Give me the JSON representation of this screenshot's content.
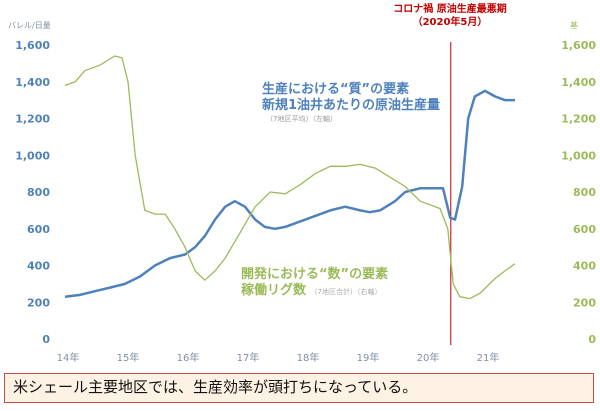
{
  "chart_data": {
    "type": "line",
    "left_axis": {
      "unit": "バレル/日量",
      "ylim": [
        0,
        1600
      ],
      "ticks": [
        "0",
        "200",
        "400",
        "600",
        "800",
        "1,000",
        "1,200",
        "1,400",
        "1,600"
      ],
      "color": "#4f81bd"
    },
    "right_axis": {
      "unit": "基",
      "ylim": [
        0,
        1600
      ],
      "ticks": [
        "0",
        "200",
        "400",
        "600",
        "800",
        "1,000",
        "1,200",
        "1,400",
        "1,600"
      ],
      "color": "#9bbb59"
    },
    "x_ticks": [
      "14年",
      "15年",
      "16年",
      "17年",
      "18年",
      "19年",
      "20年",
      "21年"
    ],
    "grid": false,
    "marker_line": {
      "label_line1": "コロナ禍 原油生産最悪期",
      "label_line2": "（2020年5月）",
      "x": 2020.38,
      "color": "#c00000"
    },
    "series": [
      {
        "name_line1": "生産における“質”の要素",
        "name_line2": "新規1油井あたりの原油生産量",
        "note": "（7地区平均）（左軸）",
        "axis": "left",
        "color": "#4f81bd",
        "x": [
          2013.95,
          2014.2,
          2014.45,
          2014.7,
          2014.95,
          2015.2,
          2015.45,
          2015.7,
          2015.95,
          2016.12,
          2016.28,
          2016.45,
          2016.62,
          2016.78,
          2016.95,
          2017.12,
          2017.28,
          2017.45,
          2017.62,
          2017.87,
          2018.12,
          2018.37,
          2018.62,
          2018.87,
          2019.03,
          2019.2,
          2019.45,
          2019.62,
          2019.87,
          2020.12,
          2020.25,
          2020.37,
          2020.45,
          2020.57,
          2020.67,
          2020.78,
          2020.95,
          2021.12,
          2021.28,
          2021.45
        ],
        "y": [
          230,
          240,
          260,
          280,
          300,
          340,
          400,
          440,
          460,
          500,
          560,
          650,
          720,
          750,
          720,
          650,
          610,
          600,
          610,
          640,
          670,
          700,
          720,
          700,
          690,
          700,
          750,
          800,
          820,
          820,
          820,
          660,
          650,
          830,
          1200,
          1320,
          1350,
          1320,
          1300,
          1300
        ]
      },
      {
        "name_line1": "開発における“数”の要素",
        "name_line2": "稼働リグ数",
        "note": "（7地区合計）（右軸）",
        "axis": "right",
        "color": "#9bbb59",
        "x": [
          2013.95,
          2014.12,
          2014.28,
          2014.53,
          2014.78,
          2014.9,
          2015.0,
          2015.12,
          2015.28,
          2015.45,
          2015.62,
          2015.78,
          2015.95,
          2016.12,
          2016.28,
          2016.45,
          2016.62,
          2016.87,
          2017.12,
          2017.37,
          2017.62,
          2017.87,
          2018.12,
          2018.37,
          2018.62,
          2018.87,
          2019.12,
          2019.37,
          2019.62,
          2019.87,
          2020.2,
          2020.33,
          2020.42,
          2020.53,
          2020.7,
          2020.87,
          2021.12,
          2021.28,
          2021.45
        ],
        "y": [
          1380,
          1400,
          1460,
          1490,
          1540,
          1530,
          1400,
          1000,
          700,
          680,
          680,
          600,
          500,
          370,
          320,
          370,
          440,
          580,
          720,
          800,
          790,
          840,
          900,
          940,
          940,
          950,
          930,
          880,
          830,
          750,
          710,
          600,
          300,
          230,
          220,
          250,
          330,
          370,
          410
        ]
      }
    ]
  },
  "caption": "米シェール主要地区では、生産効率が頭打ちになっている。"
}
